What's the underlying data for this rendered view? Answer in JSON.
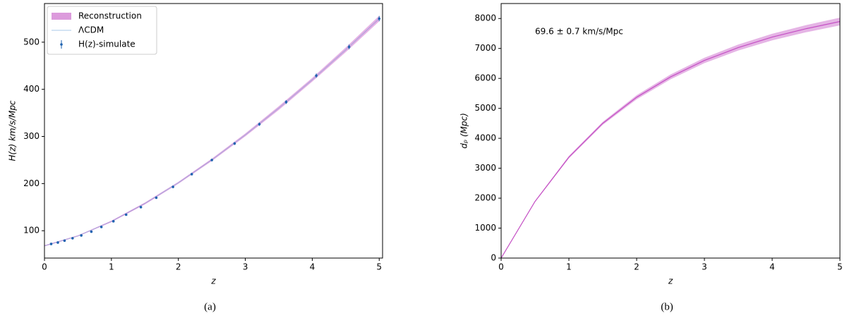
{
  "chart_data": [
    {
      "type": "line",
      "xlabel": "z",
      "ylabel": "H(z) km/s/Mpc",
      "caption": "(a)",
      "xlim": [
        0,
        5.05
      ],
      "ylim": [
        42,
        582
      ],
      "xticks": [
        0,
        1,
        2,
        3,
        4,
        5
      ],
      "yticks": [
        100,
        200,
        300,
        400,
        500
      ],
      "legend": "upper left",
      "x": [
        0,
        0.5,
        1,
        1.5,
        2,
        2.5,
        3,
        3.5,
        4,
        4.5,
        5
      ],
      "series": [
        {
          "name": "Reconstruction",
          "color": "#c44fc4",
          "band_color": "#dc9bdc",
          "values": [
            68,
            89,
            119.7,
            157.8,
            201.7,
            250.4,
            303.3,
            360.1,
            420.3,
            483.8,
            550.2
          ],
          "lower": [
            67,
            88,
            118.2,
            155.8,
            199.7,
            247.9,
            300.3,
            356.1,
            416.3,
            478.8,
            544.2
          ],
          "upper": [
            69,
            90,
            121.2,
            159.8,
            203.7,
            252.9,
            306.3,
            364.1,
            424.3,
            488.8,
            556.2
          ]
        },
        {
          "name": "ΛCDM",
          "color": "#a9c8e8",
          "values": [
            68,
            89,
            119.7,
            157.8,
            201.7,
            250.4,
            303.3,
            360.1,
            420.3,
            483.8,
            550.2
          ]
        },
        {
          "name": "H(z)-simulate",
          "type": "errorbar",
          "color": "#1f63b0",
          "x": [
            0.1,
            0.2,
            0.3,
            0.42,
            0.55,
            0.7,
            0.85,
            1.03,
            1.22,
            1.44,
            1.67,
            1.92,
            2.2,
            2.5,
            2.84,
            3.21,
            3.61,
            4.06,
            4.55,
            5.0
          ],
          "values": [
            72,
            75,
            79,
            84,
            90,
            98,
            108,
            120,
            134,
            150,
            170,
            193,
            220,
            250,
            285,
            326,
            373,
            429,
            490,
            550
          ],
          "errors": [
            1.5,
            1.5,
            1.5,
            1.5,
            1.5,
            1.5,
            1.5,
            2,
            2,
            2,
            2,
            2.5,
            2.5,
            2.5,
            3,
            3.5,
            4,
            4.5,
            5,
            5.5
          ]
        }
      ]
    },
    {
      "type": "line",
      "xlabel": "z",
      "ylabel": "dₚ (Mpc)",
      "caption": "(b)",
      "annotation": "69.6 ± 0.7 km/s/Mpc",
      "xlim": [
        0,
        5
      ],
      "ylim": [
        0,
        8500
      ],
      "xticks": [
        0,
        1,
        2,
        3,
        4,
        5
      ],
      "yticks": [
        0,
        1000,
        2000,
        3000,
        4000,
        5000,
        6000,
        7000,
        8000
      ],
      "x": [
        0,
        0.5,
        1,
        1.5,
        2,
        2.5,
        3,
        3.5,
        4,
        4.5,
        5
      ],
      "series": [
        {
          "name": "Reconstruction",
          "color": "#c44fc4",
          "band_color": "#dc9bdc",
          "values": [
            0,
            1890,
            3370,
            4500,
            5370,
            6050,
            6600,
            7030,
            7380,
            7660,
            7900
          ],
          "lower": [
            0,
            1870,
            3330,
            4450,
            5300,
            5970,
            6510,
            6930,
            7270,
            7540,
            7770
          ],
          "upper": [
            0,
            1910,
            3410,
            4550,
            5440,
            6130,
            6690,
            7130,
            7490,
            7780,
            8030
          ]
        }
      ]
    }
  ]
}
